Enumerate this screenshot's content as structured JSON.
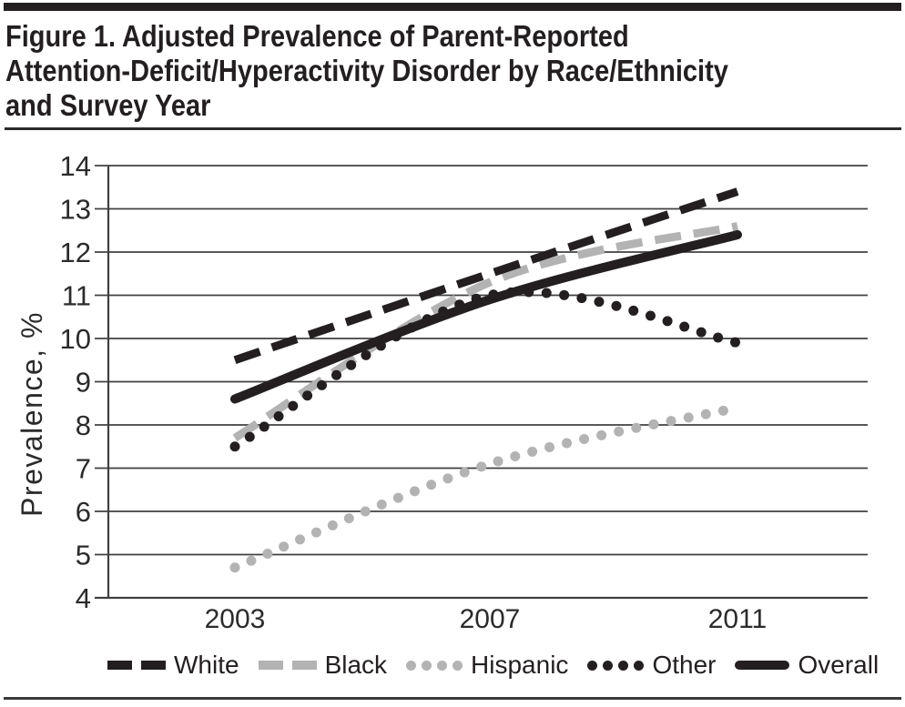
{
  "header": {
    "title_lines": [
      "Figure 1. Adjusted Prevalence of Parent-Reported",
      "Attention-Deficit/Hyperactivity Disorder by Race/Ethnicity",
      "and Survey Year"
    ]
  },
  "colors": {
    "black": "#231f20",
    "gray": "#b3b3b3",
    "grid": "#404040",
    "text": "#2b2b2b"
  },
  "chart_data": {
    "type": "line",
    "x": [
      2003,
      2007,
      2011
    ],
    "xticklabels": [
      "2003",
      "2007",
      "2011"
    ],
    "ylabel": "Prevalence, %",
    "ylim": [
      4,
      14
    ],
    "yticks": [
      4,
      5,
      6,
      7,
      8,
      9,
      10,
      11,
      12,
      13,
      14
    ],
    "grid": true,
    "legend_position": "bottom",
    "series": [
      {
        "name": "White",
        "values": [
          9.5,
          11.5,
          13.4
        ],
        "color": "#231f20",
        "style": "dashed"
      },
      {
        "name": "Black",
        "values": [
          7.7,
          11.3,
          12.6
        ],
        "color": "#b3b3b3",
        "style": "dashed"
      },
      {
        "name": "Hispanic",
        "values": [
          4.7,
          7.1,
          8.4
        ],
        "color": "#b3b3b3",
        "style": "dotted"
      },
      {
        "name": "Other",
        "values": [
          7.5,
          11.0,
          9.9
        ],
        "color": "#231f20",
        "style": "dotted"
      },
      {
        "name": "Overall",
        "values": [
          8.6,
          10.9,
          12.4
        ],
        "color": "#231f20",
        "style": "solid"
      }
    ]
  }
}
